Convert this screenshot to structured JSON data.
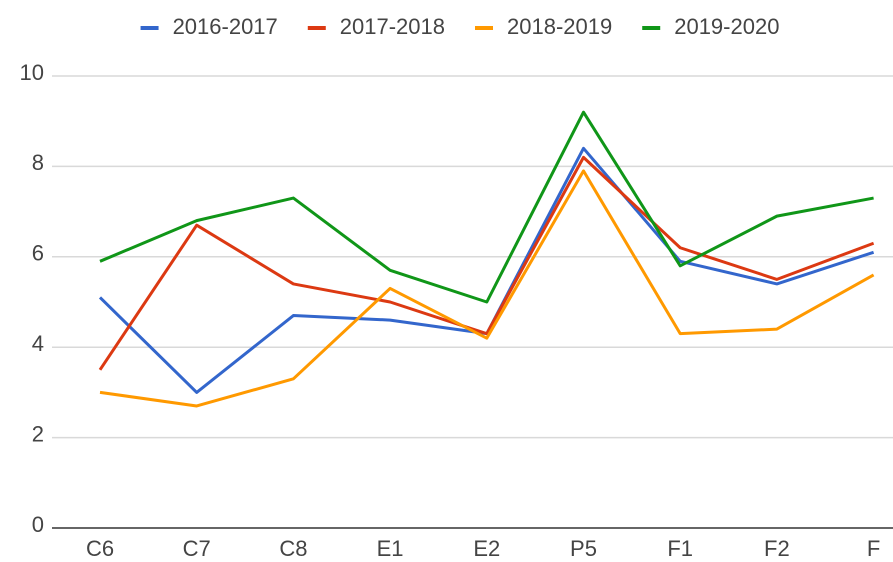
{
  "chart_data": {
    "type": "line",
    "categories": [
      "C6",
      "C7",
      "C8",
      "E1",
      "E2",
      "P5",
      "F1",
      "F2",
      "F"
    ],
    "series": [
      {
        "name": "2016-2017",
        "color": "#3366cc",
        "values": [
          5.1,
          3.0,
          4.7,
          4.6,
          4.3,
          8.4,
          5.9,
          5.4,
          6.1
        ]
      },
      {
        "name": "2017-2018",
        "color": "#dc3912",
        "values": [
          3.5,
          6.7,
          5.4,
          5.0,
          4.3,
          8.2,
          6.2,
          5.5,
          6.3
        ]
      },
      {
        "name": "2018-2019",
        "color": "#ff9900",
        "values": [
          3.0,
          2.7,
          3.3,
          5.3,
          4.2,
          7.9,
          4.3,
          4.4,
          5.6
        ]
      },
      {
        "name": "2019-2020",
        "color": "#109618",
        "values": [
          5.9,
          6.8,
          7.3,
          5.7,
          5.0,
          9.2,
          5.8,
          6.9,
          7.3
        ]
      }
    ],
    "ylim": [
      0,
      10
    ],
    "yticks": [
      0,
      2,
      4,
      6,
      8,
      10
    ],
    "grid": true,
    "legend": "top"
  }
}
